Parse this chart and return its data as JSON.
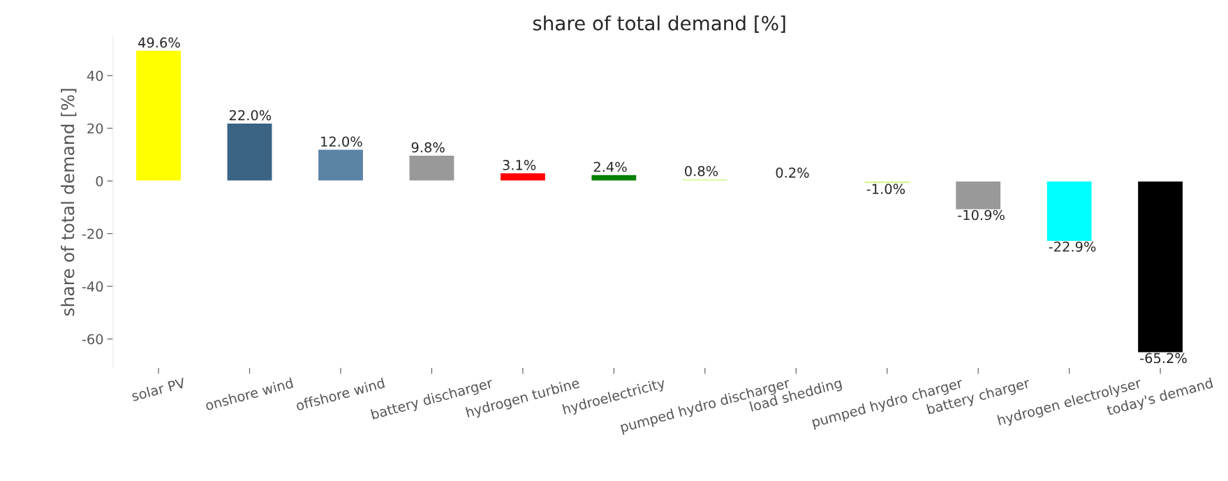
{
  "chart_data": {
    "type": "bar",
    "title": "share of total demand [%]",
    "ylabel": "share of total demand [%]",
    "categories": [
      "solar PV",
      "onshore wind",
      "offshore wind",
      "battery discharger",
      "hydrogen turbine",
      "hydroelectricity",
      "pumped hydro discharger",
      "load shedding",
      "pumped hydro charger",
      "battery charger",
      "hydrogen electrolyser",
      "today's demand"
    ],
    "values": [
      49.6,
      22.0,
      12.0,
      9.8,
      3.1,
      2.4,
      0.8,
      0.2,
      -1.0,
      -10.9,
      -22.9,
      -65.2
    ],
    "colors": [
      "#ffff00",
      "#3a6384",
      "#5b83a6",
      "#999999",
      "#ff0000",
      "#008000",
      "#d5f591",
      "#000000",
      "#d5f591",
      "#999999",
      "#00ffff",
      "#000000"
    ],
    "value_labels": [
      "49.6%",
      "22.0%",
      "12.0%",
      "9.8%",
      "3.1%",
      "2.4%",
      "0.8%",
      "0.2%",
      "-1.0%",
      "-10.9%",
      "-22.9%",
      "-65.2%"
    ],
    "ylim": [
      -71,
      55
    ],
    "yticks": [
      -60,
      -40,
      -20,
      0,
      20,
      40
    ],
    "grid": false,
    "legend": false
  }
}
